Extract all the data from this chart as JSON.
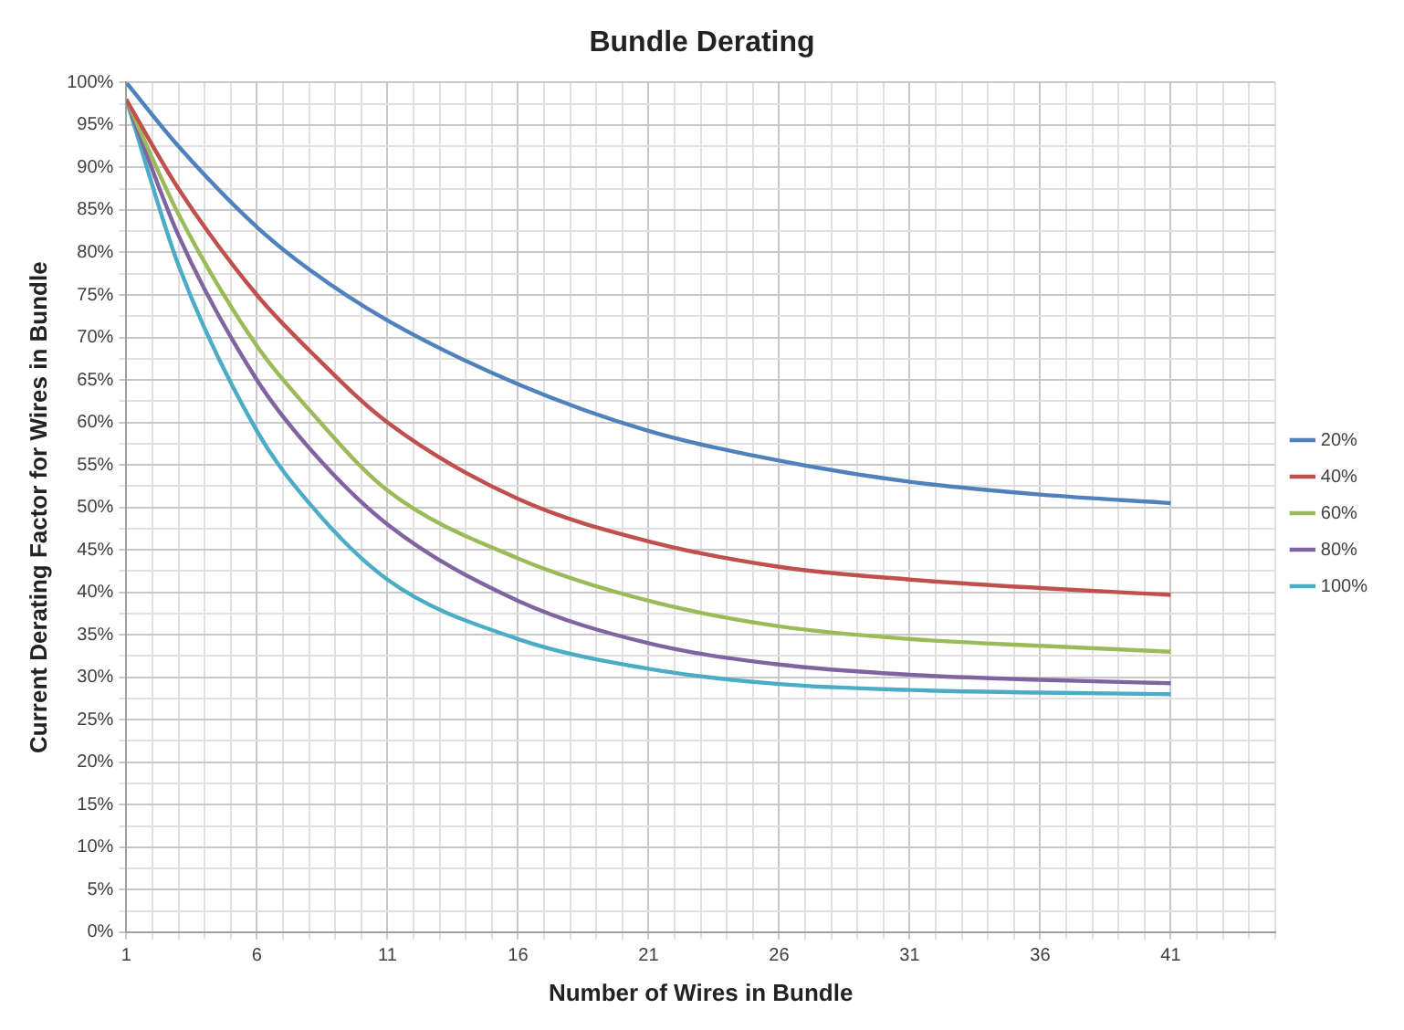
{
  "chart_data": {
    "type": "line",
    "title": "Bundle Derating",
    "xlabel": "Number of Wires in Bundle",
    "ylabel": "Current Derating Factor for Wires in Bundle",
    "x": [
      1,
      3,
      6,
      8,
      11,
      16,
      21,
      26,
      31,
      36,
      41
    ],
    "series": [
      {
        "name": "20%",
        "color": "#4f81bd",
        "values": [
          100,
          92.5,
          83,
          78,
          72,
          64.5,
          59,
          55.5,
          53,
          51.5,
          50.5
        ]
      },
      {
        "name": "40%",
        "color": "#c0504d",
        "values": [
          98,
          87.5,
          75,
          68.5,
          60,
          51,
          46,
          43,
          41.5,
          40.5,
          39.7
        ]
      },
      {
        "name": "60%",
        "color": "#9bbb59",
        "values": [
          98,
          84.5,
          69,
          61.5,
          52,
          44,
          39,
          36,
          34.5,
          33.7,
          33
        ]
      },
      {
        "name": "80%",
        "color": "#8064a2",
        "values": [
          98,
          82,
          65,
          57,
          48,
          39,
          34,
          31.5,
          30.3,
          29.7,
          29.3
        ]
      },
      {
        "name": "100%",
        "color": "#4bacc6",
        "values": [
          98,
          78.5,
          59,
          50.5,
          41.5,
          34.5,
          31,
          29.2,
          28.5,
          28.2,
          28
        ]
      }
    ],
    "xlim": [
      1,
      45
    ],
    "xticks": [
      1,
      {
        "value": 2,
        "label": null
      },
      {
        "value": 3,
        "label": null
      },
      {
        "value": 4,
        "label": null
      },
      {
        "value": 5,
        "label": null
      },
      6,
      {
        "value": 7,
        "label": null
      },
      {
        "value": 8,
        "label": null
      },
      {
        "value": 9,
        "label": null
      },
      {
        "value": 10,
        "label": null
      },
      11,
      {
        "value": 12,
        "label": null
      },
      {
        "value": 13,
        "label": null
      },
      {
        "value": 14,
        "label": null
      },
      {
        "value": 15,
        "label": null
      },
      16,
      {
        "value": 17,
        "label": null
      },
      {
        "value": 18,
        "label": null
      },
      {
        "value": 19,
        "label": null
      },
      {
        "value": 20,
        "label": null
      },
      21,
      {
        "value": 22,
        "label": null
      },
      {
        "value": 23,
        "label": null
      },
      {
        "value": 24,
        "label": null
      },
      {
        "value": 25,
        "label": null
      },
      26,
      {
        "value": 27,
        "label": null
      },
      {
        "value": 28,
        "label": null
      },
      {
        "value": 29,
        "label": null
      },
      {
        "value": 30,
        "label": null
      },
      31,
      {
        "value": 32,
        "label": null
      },
      {
        "value": 33,
        "label": null
      },
      {
        "value": 34,
        "label": null
      },
      {
        "value": 35,
        "label": null
      },
      36,
      {
        "value": 37,
        "label": null
      },
      {
        "value": 38,
        "label": null
      },
      {
        "value": 39,
        "label": null
      },
      {
        "value": 40,
        "label": null
      },
      41,
      {
        "value": 42,
        "label": null
      },
      {
        "value": 43,
        "label": null
      },
      {
        "value": 44,
        "label": null
      },
      {
        "value": 45,
        "label": null
      }
    ],
    "ylim": [
      0,
      100
    ],
    "yticks": [
      {
        "value": 0,
        "label": "0%"
      },
      {
        "value": 2.5,
        "label": null
      },
      {
        "value": 5,
        "label": "5%"
      },
      {
        "value": 7.5,
        "label": null
      },
      {
        "value": 10,
        "label": "10%"
      },
      {
        "value": 12.5,
        "label": null
      },
      {
        "value": 15,
        "label": "15%"
      },
      {
        "value": 17.5,
        "label": null
      },
      {
        "value": 20,
        "label": "20%"
      },
      {
        "value": 22.5,
        "label": null
      },
      {
        "value": 25,
        "label": "25%"
      },
      {
        "value": 27.5,
        "label": null
      },
      {
        "value": 30,
        "label": "30%"
      },
      {
        "value": 32.5,
        "label": null
      },
      {
        "value": 35,
        "label": "35%"
      },
      {
        "value": 37.5,
        "label": null
      },
      {
        "value": 40,
        "label": "40%"
      },
      {
        "value": 42.5,
        "label": null
      },
      {
        "value": 45,
        "label": "45%"
      },
      {
        "value": 47.5,
        "label": null
      },
      {
        "value": 50,
        "label": "50%"
      },
      {
        "value": 52.5,
        "label": null
      },
      {
        "value": 55,
        "label": "55%"
      },
      {
        "value": 57.5,
        "label": null
      },
      {
        "value": 60,
        "label": "60%"
      },
      {
        "value": 62.5,
        "label": null
      },
      {
        "value": 65,
        "label": "65%"
      },
      {
        "value": 67.5,
        "label": null
      },
      {
        "value": 70,
        "label": "70%"
      },
      {
        "value": 72.5,
        "label": null
      },
      {
        "value": 75,
        "label": "75%"
      },
      {
        "value": 77.5,
        "label": null
      },
      {
        "value": 80,
        "label": "80%"
      },
      {
        "value": 82.5,
        "label": null
      },
      {
        "value": 85,
        "label": "85%"
      },
      {
        "value": 87.5,
        "label": null
      },
      {
        "value": 90,
        "label": "90%"
      },
      {
        "value": 92.5,
        "label": null
      },
      {
        "value": 95,
        "label": "95%"
      },
      {
        "value": 97.5,
        "label": null
      },
      {
        "value": 100,
        "label": "100%"
      }
    ],
    "grid": true,
    "legend": "right",
    "marker": "none",
    "line_style": "solid"
  }
}
